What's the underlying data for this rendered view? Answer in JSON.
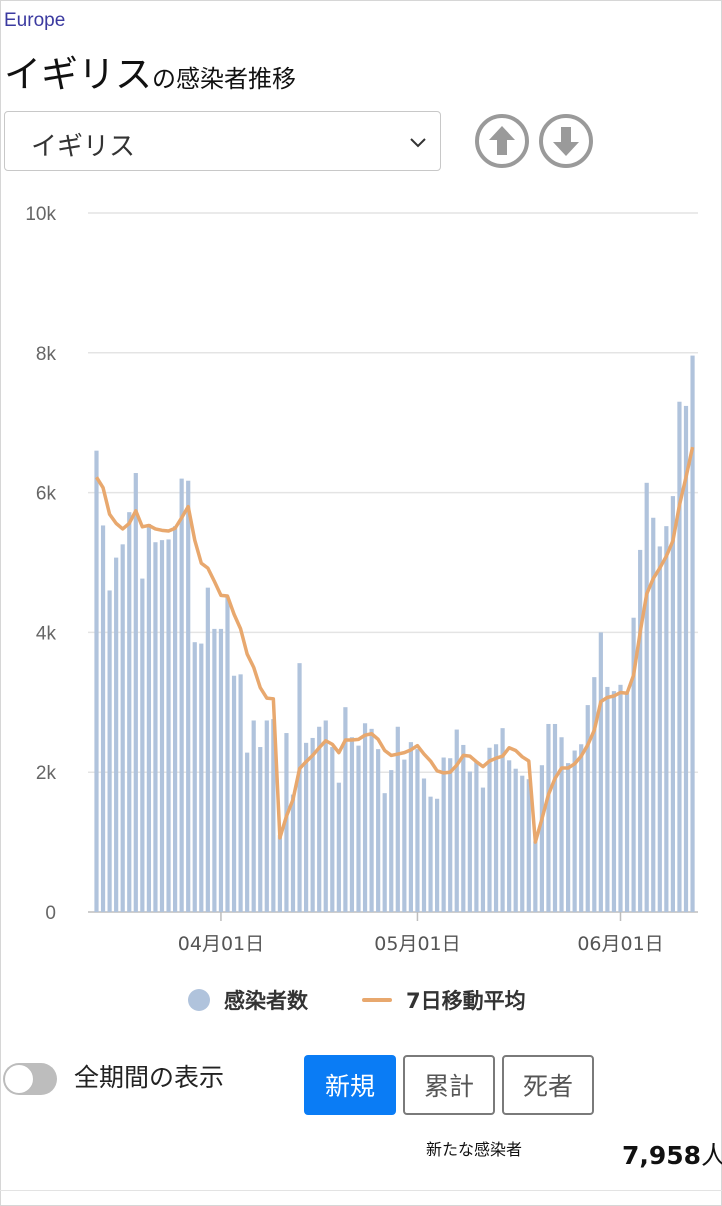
{
  "header": {
    "region": "Europe",
    "title_main": "イギリス",
    "title_suffix": "の感染者推移"
  },
  "country_select": {
    "value": "イギリス"
  },
  "nav": {
    "up_icon": "arrow-up-circle-icon",
    "down_icon": "arrow-down-circle-icon"
  },
  "legend": {
    "bars_label": "感染者数",
    "line_label": "7日移動平均"
  },
  "controls": {
    "toggle_label": "全期間の表示",
    "toggle_on": false,
    "buttons": [
      "新規",
      "累計",
      "死者"
    ],
    "active_button": "新規"
  },
  "summary": {
    "label": "新たな感染者",
    "value": "7,958",
    "unit": "人"
  },
  "colors": {
    "bar": "#b0c3dc",
    "line": "#e8a86e",
    "accent": "#0a7cf5",
    "region": "#3b3aa0"
  },
  "chart_data": {
    "type": "bar",
    "series": [
      {
        "name": "感染者数",
        "type": "bar",
        "x_start": "2021-03-13",
        "values": [
          6600,
          5530,
          4600,
          5070,
          5260,
          5720,
          6280,
          4770,
          5550,
          5290,
          5320,
          5330,
          5520,
          6200,
          6170,
          3860,
          3840,
          4640,
          4050,
          4050,
          4500,
          3380,
          3400,
          2280,
          2740,
          2360,
          2740,
          2760,
          1100,
          2560,
          1680,
          3560,
          2420,
          2490,
          2650,
          2740,
          2360,
          1850,
          2930,
          2500,
          2380,
          2700,
          2620,
          2330,
          1700,
          2030,
          2650,
          2180,
          2430,
          2330,
          1910,
          1650,
          1620,
          2210,
          2200,
          2610,
          2390,
          2010,
          2160,
          1780,
          2350,
          2400,
          2630,
          2170,
          2050,
          1950,
          1900,
          1010,
          2100,
          2690,
          2690,
          2500,
          2130,
          2310,
          2400,
          2960,
          3360,
          4000,
          3220,
          3160,
          3250,
          3130,
          4210,
          5180,
          6140,
          5640,
          5230,
          5520,
          5950,
          7300,
          7240,
          7960
        ]
      },
      {
        "name": "7日移動平均",
        "type": "line",
        "x_start": "2021-03-13",
        "values": [
          6220,
          6070,
          5690,
          5560,
          5480,
          5560,
          5740,
          5510,
          5530,
          5480,
          5460,
          5450,
          5490,
          5640,
          5800,
          5320,
          4990,
          4920,
          4730,
          4530,
          4520,
          4260,
          4050,
          3690,
          3500,
          3210,
          3060,
          3050,
          1060,
          1370,
          1610,
          2050,
          2150,
          2240,
          2350,
          2450,
          2400,
          2280,
          2460,
          2460,
          2470,
          2530,
          2550,
          2470,
          2310,
          2240,
          2260,
          2280,
          2320,
          2380,
          2260,
          2160,
          2020,
          1990,
          2000,
          2100,
          2240,
          2230,
          2150,
          2080,
          2160,
          2200,
          2230,
          2350,
          2310,
          2220,
          2160,
          1000,
          1330,
          1680,
          1910,
          2060,
          2060,
          2120,
          2230,
          2390,
          2600,
          3010,
          3070,
          3090,
          3140,
          3130,
          3390,
          4000,
          4550,
          4770,
          4920,
          5090,
          5310,
          5820,
          6220,
          6650
        ]
      }
    ],
    "x_tick_labels": [
      "04月01日",
      "05月01日",
      "06月01日"
    ],
    "x_tick_dates": [
      "2021-04-01",
      "2021-05-01",
      "2021-06-01"
    ],
    "y_tick_labels": [
      "0",
      "2k",
      "4k",
      "6k",
      "8k",
      "10k"
    ],
    "ylim": [
      0,
      10000
    ],
    "grid": true,
    "legend_position": "bottom"
  }
}
